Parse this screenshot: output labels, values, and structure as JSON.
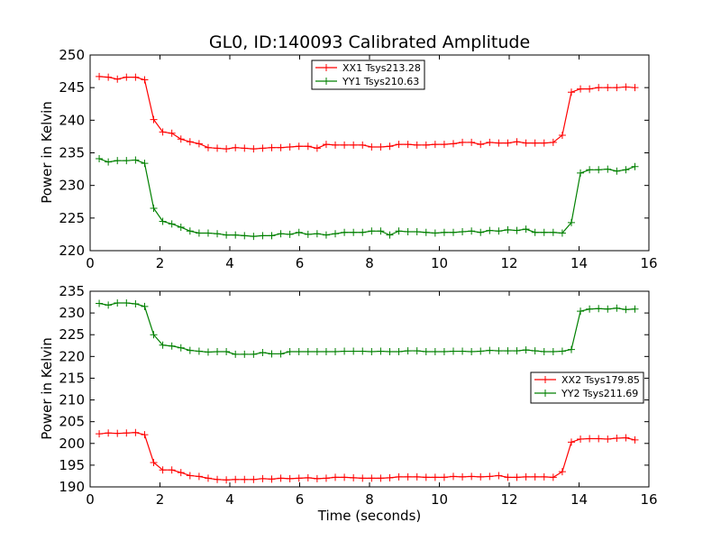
{
  "chart_data": [
    {
      "type": "line",
      "title": "GL0, ID:140093 Calibrated Amplitude",
      "xlabel": "",
      "ylabel": "Power in Kelvin",
      "xlim": [
        0,
        16
      ],
      "ylim": [
        220,
        250
      ],
      "xticks": [
        "0",
        "2",
        "4",
        "6",
        "8",
        "10",
        "12",
        "14",
        "16"
      ],
      "yticks": [
        "220",
        "225",
        "230",
        "235",
        "240",
        "245",
        "250"
      ],
      "grid": false,
      "legend_position": "top-center",
      "x": [
        0.26,
        0.52,
        0.78,
        1.04,
        1.3,
        1.56,
        1.82,
        2.08,
        2.34,
        2.6,
        2.86,
        3.12,
        3.38,
        3.64,
        3.9,
        4.16,
        4.42,
        4.68,
        4.94,
        5.2,
        5.46,
        5.72,
        5.98,
        6.24,
        6.5,
        6.76,
        7.02,
        7.28,
        7.54,
        7.8,
        8.06,
        8.32,
        8.58,
        8.84,
        9.1,
        9.36,
        9.62,
        9.88,
        10.14,
        10.4,
        10.66,
        10.92,
        11.18,
        11.44,
        11.7,
        11.96,
        12.22,
        12.48,
        12.74,
        13.0,
        13.26,
        13.52,
        13.78,
        14.04,
        14.3,
        14.56,
        14.82,
        15.08,
        15.34,
        15.6
      ],
      "series": [
        {
          "name": "XX1 Tsys213.28",
          "color": "#ff0000",
          "values": [
            246.7,
            246.6,
            246.3,
            246.6,
            246.6,
            246.2,
            240.1,
            238.2,
            238.0,
            237.1,
            236.7,
            236.4,
            235.8,
            235.7,
            235.6,
            235.8,
            235.7,
            235.6,
            235.7,
            235.8,
            235.8,
            235.9,
            236.0,
            236.0,
            235.7,
            236.3,
            236.2,
            236.2,
            236.2,
            236.2,
            235.9,
            235.9,
            236.0,
            236.3,
            236.3,
            236.2,
            236.2,
            236.3,
            236.3,
            236.4,
            236.6,
            236.6,
            236.3,
            236.6,
            236.5,
            236.5,
            236.7,
            236.5,
            236.5,
            236.5,
            236.6,
            237.7,
            244.3,
            244.8,
            244.8,
            245.0,
            245.0,
            245.0,
            245.1,
            245.0
          ]
        },
        {
          "name": "YY1 Tsys210.63",
          "color": "#008000",
          "values": [
            234.1,
            233.6,
            233.8,
            233.8,
            233.9,
            233.4,
            226.5,
            224.5,
            224.1,
            223.6,
            223.0,
            222.7,
            222.7,
            222.6,
            222.4,
            222.4,
            222.3,
            222.2,
            222.3,
            222.3,
            222.6,
            222.5,
            222.8,
            222.5,
            222.6,
            222.4,
            222.6,
            222.8,
            222.8,
            222.8,
            223.0,
            223.0,
            222.4,
            223.0,
            222.9,
            222.9,
            222.8,
            222.7,
            222.8,
            222.8,
            222.9,
            223.0,
            222.8,
            223.1,
            223.0,
            223.2,
            223.1,
            223.3,
            222.8,
            222.8,
            222.8,
            222.7,
            224.3,
            231.9,
            232.4,
            232.4,
            232.5,
            232.2,
            232.4,
            232.9
          ]
        }
      ]
    },
    {
      "type": "line",
      "title": "",
      "xlabel": "Time (seconds)",
      "ylabel": "Power in Kelvin",
      "xlim": [
        0,
        16
      ],
      "ylim": [
        190,
        235
      ],
      "xticks": [
        "0",
        "2",
        "4",
        "6",
        "8",
        "10",
        "12",
        "14",
        "16"
      ],
      "yticks": [
        "190",
        "195",
        "200",
        "205",
        "210",
        "215",
        "220",
        "225",
        "230",
        "235"
      ],
      "grid": false,
      "legend_position": "center-right",
      "x": [
        0.26,
        0.52,
        0.78,
        1.04,
        1.3,
        1.56,
        1.82,
        2.08,
        2.34,
        2.6,
        2.86,
        3.12,
        3.38,
        3.64,
        3.9,
        4.16,
        4.42,
        4.68,
        4.94,
        5.2,
        5.46,
        5.72,
        5.98,
        6.24,
        6.5,
        6.76,
        7.02,
        7.28,
        7.54,
        7.8,
        8.06,
        8.32,
        8.58,
        8.84,
        9.1,
        9.36,
        9.62,
        9.88,
        10.14,
        10.4,
        10.66,
        10.92,
        11.18,
        11.44,
        11.7,
        11.96,
        12.22,
        12.48,
        12.74,
        13.0,
        13.26,
        13.52,
        13.78,
        14.04,
        14.3,
        14.56,
        14.82,
        15.08,
        15.34,
        15.6
      ],
      "series": [
        {
          "name": "XX2 Tsys179.85",
          "color": "#ff0000",
          "values": [
            202.2,
            202.4,
            202.3,
            202.4,
            202.5,
            202.0,
            195.6,
            193.9,
            193.9,
            193.3,
            192.6,
            192.4,
            192.0,
            191.7,
            191.6,
            191.7,
            191.7,
            191.7,
            191.9,
            191.8,
            192.0,
            191.9,
            192.0,
            192.1,
            191.9,
            192.0,
            192.2,
            192.2,
            192.1,
            192.0,
            192.0,
            192.0,
            192.1,
            192.3,
            192.3,
            192.3,
            192.2,
            192.2,
            192.2,
            192.4,
            192.3,
            192.4,
            192.3,
            192.4,
            192.6,
            192.2,
            192.2,
            192.3,
            192.3,
            192.3,
            192.2,
            193.5,
            200.3,
            201.0,
            201.1,
            201.1,
            201.0,
            201.2,
            201.3,
            200.8
          ]
        },
        {
          "name": "YY2 Tsys211.69",
          "color": "#008000",
          "values": [
            232.2,
            231.8,
            232.3,
            232.3,
            232.1,
            231.5,
            225.0,
            222.6,
            222.4,
            222.0,
            221.4,
            221.2,
            221.0,
            221.1,
            221.1,
            220.5,
            220.5,
            220.5,
            220.9,
            220.6,
            220.6,
            221.1,
            221.1,
            221.1,
            221.1,
            221.1,
            221.1,
            221.2,
            221.2,
            221.2,
            221.1,
            221.2,
            221.1,
            221.1,
            221.3,
            221.3,
            221.1,
            221.1,
            221.1,
            221.2,
            221.2,
            221.1,
            221.2,
            221.4,
            221.3,
            221.3,
            221.3,
            221.5,
            221.3,
            221.1,
            221.1,
            221.2,
            221.6,
            230.4,
            230.9,
            231.0,
            230.9,
            231.1,
            230.8,
            230.9
          ]
        }
      ]
    }
  ]
}
